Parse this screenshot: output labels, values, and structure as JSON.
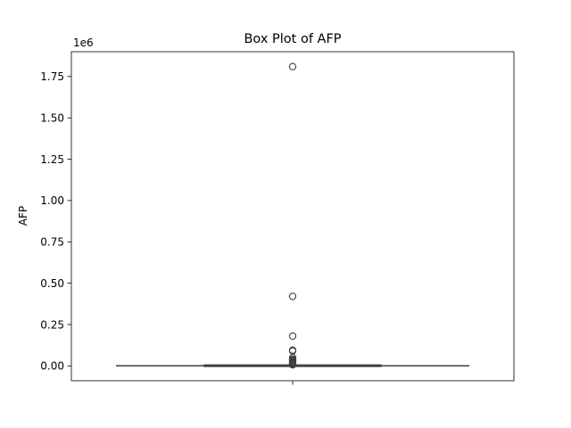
{
  "chart_data": {
    "type": "box",
    "title": "Box Plot of AFP",
    "xlabel": "",
    "ylabel": "AFP",
    "y_offset_label": "1e6",
    "ylim": [
      -0.09,
      1.9
    ],
    "yticks": [
      0.0,
      0.25,
      0.5,
      0.75,
      1.0,
      1.25,
      1.5,
      1.75
    ],
    "ytick_labels": [
      "0.00",
      "0.25",
      "0.50",
      "0.75",
      "1.00",
      "1.25",
      "1.50",
      "1.75"
    ],
    "orientation": "vertical",
    "grid": false,
    "box": {
      "min": 0.0,
      "q1": 0.0,
      "median": 0.0,
      "q3": 0.001,
      "max": 0.002
    },
    "outliers": [
      1.81,
      0.42,
      0.18,
      0.095,
      0.09,
      0.05,
      0.04,
      0.035,
      0.03,
      0.025,
      0.02,
      0.015,
      0.01,
      0.006
    ],
    "colors": {
      "line": "#3f3f3f",
      "box_fill": "#1f77b4",
      "marker_edge": "#3f3f3f"
    }
  }
}
